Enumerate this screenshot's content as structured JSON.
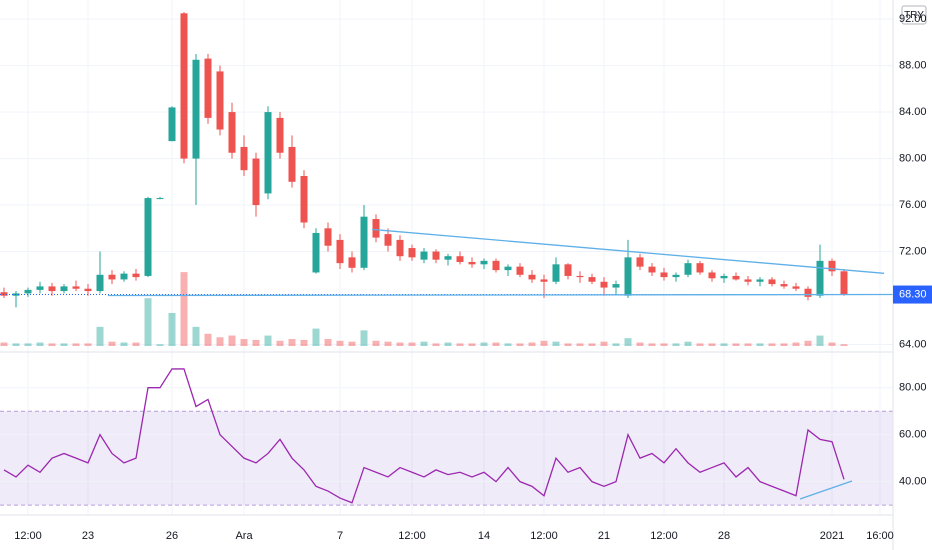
{
  "chart_data": [
    {
      "type": "candlestick",
      "currency": "TRY",
      "price_label": "68.30",
      "last_price": 68.3,
      "categories": [
        null,
        null,
        "12:00",
        null,
        null,
        null,
        null,
        "23",
        null,
        null,
        null,
        null,
        null,
        null,
        "26",
        null,
        null,
        null,
        null,
        null,
        "Ara",
        null,
        null,
        null,
        null,
        null,
        null,
        null,
        "7",
        null,
        null,
        null,
        null,
        null,
        "12:00",
        null,
        null,
        null,
        null,
        null,
        "14",
        null,
        null,
        null,
        null,
        "12:00",
        null,
        null,
        null,
        null,
        "21",
        null,
        null,
        null,
        null,
        "12:00",
        null,
        null,
        null,
        null,
        "28",
        null,
        null,
        null,
        null,
        null,
        null,
        null,
        null,
        "2021",
        null,
        null,
        null,
        "16:00"
      ],
      "open": [
        68.5,
        68.2,
        68.4,
        68.7,
        69.0,
        68.6,
        69.0,
        68.8,
        68.6,
        70.0,
        69.6,
        70.1,
        69.9,
        76.6,
        81.5,
        92.5,
        80.0,
        88.6,
        87.5,
        84.0,
        81.0,
        80.0,
        77.0,
        83.5,
        81.0,
        78.5,
        70.2,
        74.0,
        73.0,
        71.5,
        70.6,
        74.8,
        73.5,
        73.0,
        72.3,
        71.3,
        72.0,
        71.3,
        71.6,
        71.1,
        70.9,
        71.2,
        70.4,
        70.7,
        70.0,
        69.6,
        69.4,
        70.9,
        69.9,
        69.8,
        69.4,
        68.9,
        68.2,
        71.5,
        70.7,
        70.2,
        69.8,
        70.0,
        71.0,
        70.2,
        69.7,
        69.9,
        69.6,
        69.4,
        69.6,
        69.2,
        69.0,
        68.8,
        68.2,
        71.2,
        70.3,
        null,
        null,
        null
      ],
      "high": [
        68.9,
        68.6,
        68.9,
        69.4,
        69.3,
        69.2,
        69.5,
        69.2,
        72.0,
        70.4,
        70.3,
        70.5,
        76.7,
        76.7,
        84.5,
        92.6,
        89.0,
        89.0,
        88.0,
        84.8,
        82.0,
        80.5,
        84.5,
        84.0,
        82.0,
        79.0,
        74.0,
        74.5,
        73.5,
        72.0,
        76.0,
        75.2,
        74.0,
        73.4,
        72.6,
        72.3,
        72.2,
        71.8,
        72.0,
        71.5,
        71.4,
        71.4,
        70.9,
        71.0,
        70.4,
        70.0,
        71.5,
        71.0,
        70.3,
        70.1,
        69.8,
        69.5,
        73.0,
        71.8,
        71.0,
        70.6,
        70.2,
        71.3,
        71.2,
        70.4,
        70.1,
        70.2,
        69.9,
        69.8,
        69.8,
        69.5,
        69.3,
        69.0,
        72.6,
        71.4,
        70.5,
        null,
        null,
        null
      ],
      "low": [
        68.0,
        67.2,
        68.1,
        68.4,
        68.2,
        68.4,
        68.6,
        68.2,
        68.4,
        69.2,
        69.4,
        69.5,
        69.8,
        76.5,
        81.5,
        79.6,
        76.0,
        83.0,
        82.0,
        80.0,
        78.5,
        75.0,
        76.5,
        80.0,
        77.5,
        74.0,
        70.1,
        72.0,
        70.5,
        70.2,
        70.4,
        72.8,
        72.0,
        71.2,
        71.2,
        71.0,
        71.0,
        70.8,
        70.9,
        70.6,
        70.5,
        70.2,
        69.9,
        69.8,
        69.3,
        68.0,
        69.2,
        69.6,
        69.3,
        69.2,
        68.2,
        68.3,
        68.0,
        70.4,
        69.9,
        69.5,
        69.4,
        69.8,
        70.0,
        69.4,
        69.3,
        69.5,
        69.1,
        69.0,
        69.0,
        68.8,
        68.6,
        67.8,
        68.0,
        69.9,
        68.2,
        null,
        null,
        null
      ],
      "close": [
        68.2,
        68.4,
        68.7,
        69.0,
        68.6,
        69.0,
        68.8,
        68.6,
        70.0,
        69.6,
        70.1,
        69.8,
        76.6,
        76.6,
        84.4,
        80.0,
        88.5,
        83.5,
        82.5,
        80.5,
        79.0,
        76.0,
        84.0,
        80.5,
        78.0,
        74.5,
        73.6,
        72.5,
        71.0,
        70.6,
        75.0,
        73.2,
        72.5,
        71.6,
        71.5,
        72.0,
        71.3,
        71.6,
        71.1,
        70.9,
        71.2,
        70.4,
        70.7,
        70.0,
        69.6,
        69.4,
        70.9,
        69.9,
        69.8,
        69.4,
        68.9,
        69.2,
        71.5,
        70.7,
        70.2,
        69.8,
        70.0,
        71.0,
        70.2,
        69.7,
        69.9,
        69.6,
        69.4,
        69.6,
        69.2,
        69.0,
        68.8,
        68.1,
        71.2,
        70.3,
        68.3,
        null,
        null,
        null
      ],
      "volume": [
        4,
        3,
        3,
        4,
        3,
        3,
        3,
        3,
        22,
        5,
        4,
        4,
        55,
        2,
        38,
        85,
        22,
        14,
        10,
        12,
        8,
        7,
        12,
        6,
        8,
        7,
        20,
        8,
        6,
        5,
        18,
        6,
        5,
        4,
        4,
        5,
        3,
        4,
        3,
        3,
        4,
        4,
        3,
        3,
        4,
        6,
        5,
        3,
        3,
        3,
        5,
        3,
        9,
        4,
        3,
        3,
        3,
        5,
        3,
        3,
        3,
        3,
        3,
        3,
        3,
        3,
        4,
        6,
        12,
        4,
        2,
        null,
        null,
        null
      ],
      "up_color": "#26a69a",
      "down_color": "#ef5350",
      "ylim": [
        63.7,
        93.3
      ],
      "yticks": [
        {
          "value": 64,
          "label": "64.00"
        },
        {
          "value": 72,
          "label": "72.00"
        },
        {
          "value": 76,
          "label": "76.00"
        },
        {
          "value": 80,
          "label": "80.00"
        },
        {
          "value": 84,
          "label": "84.00"
        },
        {
          "value": 88,
          "label": "88.00"
        },
        {
          "value": 92,
          "label": "92.00"
        }
      ],
      "vlim": [
        0,
        115
      ],
      "grid": true
    },
    {
      "type": "line",
      "values": [
        45,
        42,
        47,
        44,
        50,
        52,
        50,
        48,
        60,
        52,
        48,
        50,
        80,
        80,
        88,
        88,
        72,
        75,
        60,
        55,
        50,
        48,
        52,
        58,
        50,
        45,
        38,
        36,
        33,
        31,
        46,
        44,
        42,
        46,
        44,
        42,
        45,
        43,
        44,
        42,
        44,
        40,
        46,
        40,
        38,
        34,
        50,
        44,
        46,
        40,
        38,
        40,
        60,
        50,
        52,
        48,
        54,
        48,
        44,
        46,
        48,
        42,
        46,
        40,
        38,
        36,
        34,
        62,
        58,
        57,
        41,
        null,
        null,
        null
      ],
      "color": "#9c27b0",
      "band": [
        30,
        70
      ],
      "band_color": "#7e57c2",
      "ylim": [
        27.5,
        93.5
      ],
      "yticks": [
        {
          "value": 40,
          "label": "40.00"
        },
        {
          "value": 60,
          "label": "60.00"
        },
        {
          "value": 80,
          "label": "80.00"
        }
      ],
      "grid": true
    }
  ]
}
